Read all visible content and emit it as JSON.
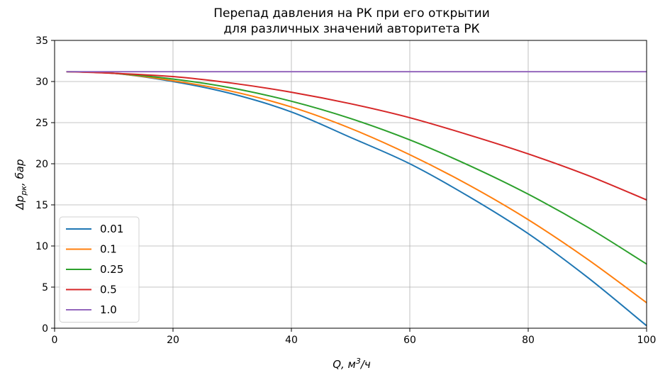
{
  "chart_data": {
    "type": "line",
    "title": [
      "Перепад давления на РК при его открытии",
      "для различных значений авторитета РК"
    ],
    "xlabel": {
      "prefix": "Q,  м",
      "sup": "3",
      "suffix": "/ч"
    },
    "ylabel": {
      "prefix": "Δp",
      "sub": "рк",
      "suffix": ",  бар"
    },
    "xlim": [
      0,
      100
    ],
    "ylim": [
      0,
      35
    ],
    "xticks": [
      0,
      20,
      40,
      60,
      80,
      100
    ],
    "yticks": [
      0,
      5,
      10,
      15,
      20,
      25,
      30,
      35
    ],
    "grid": true,
    "legend_position": "lower-left",
    "x": [
      2,
      10,
      20,
      30,
      40,
      50,
      60,
      70,
      80,
      90,
      100
    ],
    "series": [
      {
        "name": "0.01",
        "color": "#1f77b4",
        "values": [
          31.2,
          31.0,
          30.0,
          28.5,
          26.3,
          23.2,
          20.0,
          16.0,
          11.5,
          6.2,
          0.3
        ]
      },
      {
        "name": "0.1",
        "color": "#ff7f0e",
        "values": [
          31.2,
          31.0,
          30.1,
          28.8,
          26.9,
          24.3,
          21.1,
          17.4,
          13.2,
          8.4,
          3.1
        ]
      },
      {
        "name": "0.25",
        "color": "#2ca02c",
        "values": [
          31.2,
          31.0,
          30.3,
          29.2,
          27.6,
          25.5,
          22.9,
          19.8,
          16.3,
          12.3,
          7.8
        ]
      },
      {
        "name": "0.5",
        "color": "#d62728",
        "values": [
          31.2,
          31.0,
          30.6,
          29.8,
          28.7,
          27.3,
          25.6,
          23.5,
          21.2,
          18.6,
          15.6
        ]
      },
      {
        "name": "1.0",
        "color": "#9467bd",
        "values": [
          31.2,
          31.2,
          31.2,
          31.2,
          31.2,
          31.2,
          31.2,
          31.2,
          31.2,
          31.2,
          31.2
        ]
      }
    ]
  }
}
